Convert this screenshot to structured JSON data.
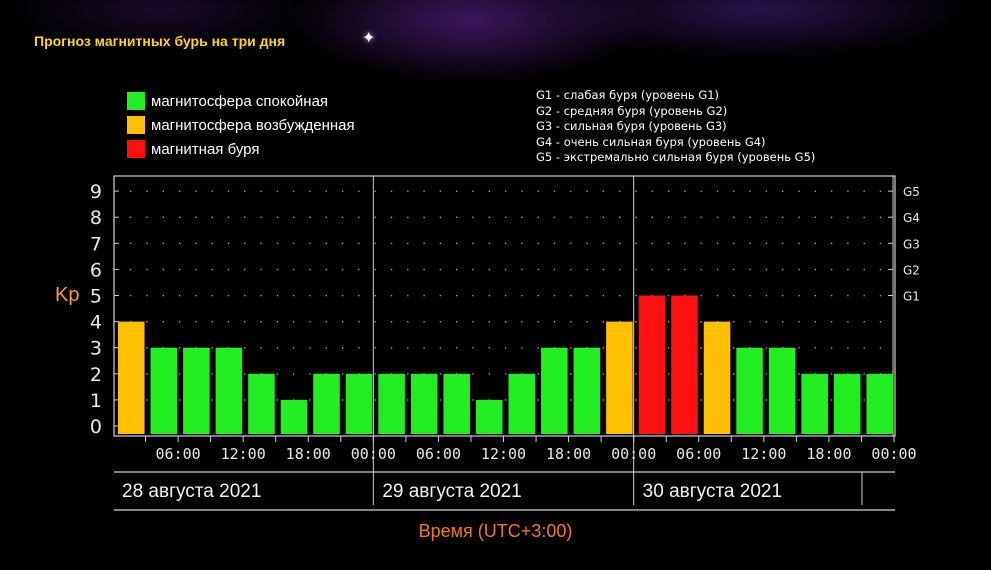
{
  "title": "Прогноз магнитных бурь на три дня",
  "legend": [
    {
      "label": "магнитосфера спокойная",
      "color": "#22ee22"
    },
    {
      "label": "магнитосфера возбужденная",
      "color": "#ffc000"
    },
    {
      "label": "магнитная буря",
      "color": "#ff1010"
    }
  ],
  "storm_levels": [
    "G1 - слабая буря (уровень G1)",
    "G2 - средняя буря (уровень G2)",
    "G3 - сильная буря (уровень G3)",
    "G4 - очень сильная буря (уровень G4)",
    "G5 - экстремально сильная буря (уровень G5)"
  ],
  "chart_data": {
    "type": "bar",
    "ylabel": "Kp",
    "xlabel": "Время (UTC+3:00)",
    "ylim": [
      0,
      9
    ],
    "yticks": [
      "0",
      "1",
      "2",
      "3",
      "4",
      "5",
      "6",
      "7",
      "8",
      "9"
    ],
    "right_ticks": [
      {
        "value": 5,
        "label": "G1"
      },
      {
        "value": 6,
        "label": "G2"
      },
      {
        "value": 7,
        "label": "G3"
      },
      {
        "value": 8,
        "label": "G4"
      },
      {
        "value": 9,
        "label": "G5"
      }
    ],
    "time_ticks": [
      "06:00",
      "12:00",
      "18:00",
      "00:00",
      "06:00",
      "12:00",
      "18:00",
      "00:00",
      "06:00",
      "12:00",
      "18:00",
      "00:00"
    ],
    "days": [
      "28 августа 2021",
      "29 августа 2021",
      "30 августа 2021"
    ],
    "grid": true,
    "values": [
      4,
      3,
      3,
      3,
      2,
      1,
      2,
      2,
      2,
      2,
      2,
      1,
      2,
      3,
      3,
      4,
      5,
      5,
      4,
      3,
      3,
      2,
      2,
      2
    ],
    "levels": [
      "excited",
      "quiet",
      "quiet",
      "quiet",
      "quiet",
      "quiet",
      "quiet",
      "quiet",
      "quiet",
      "quiet",
      "quiet",
      "quiet",
      "quiet",
      "quiet",
      "quiet",
      "excited",
      "storm",
      "storm",
      "excited",
      "quiet",
      "quiet",
      "quiet",
      "quiet",
      "quiet"
    ],
    "colors": {
      "quiet": "#22ee22",
      "excited": "#ffc000",
      "storm": "#ff1010"
    }
  },
  "time_axis_label": "Время (UTC+3:00)"
}
